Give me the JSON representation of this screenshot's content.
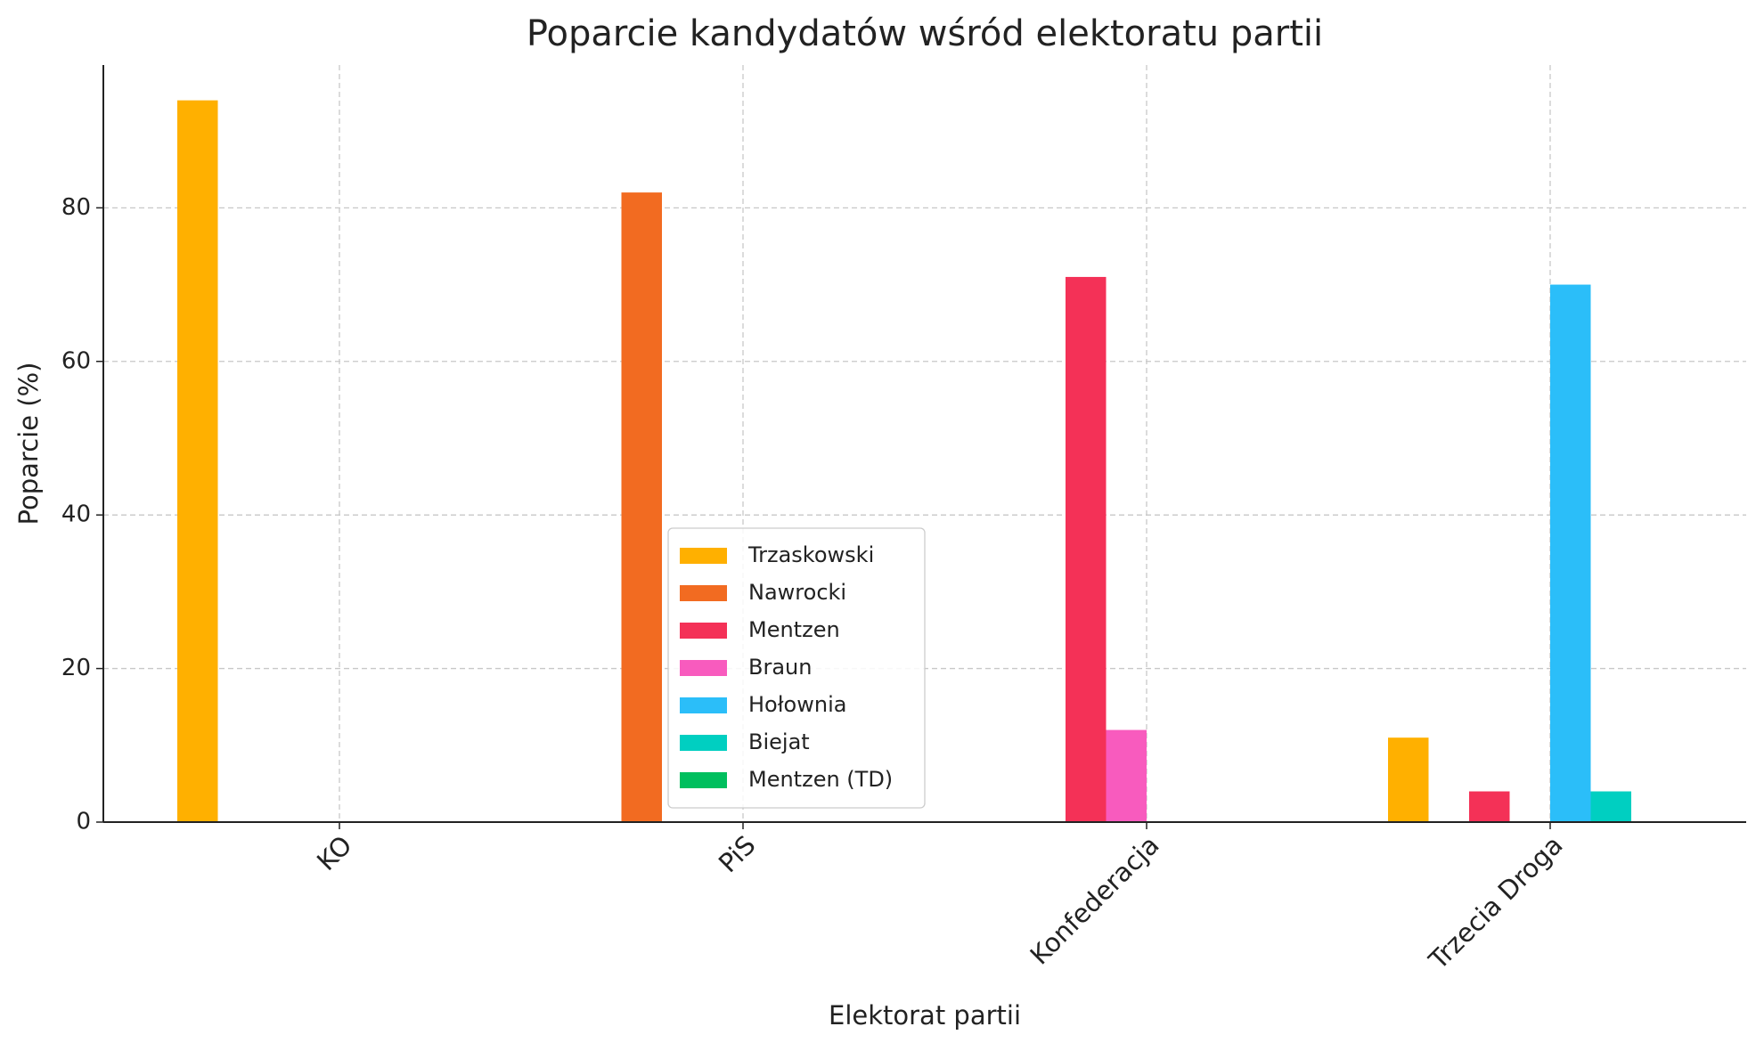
{
  "chart_data": {
    "type": "bar",
    "title": "Poparcie kandydatów wśród elektoratu partii",
    "x_label": "Elektorat partii",
    "y_label": "Poparcie (%)",
    "categories": [
      "KO",
      "PiS",
      "Konfederacja",
      "Trzecia Droga"
    ],
    "series": [
      {
        "name": "Trzaskowski",
        "color": "#ffb000",
        "values": [
          94,
          0,
          0,
          11
        ]
      },
      {
        "name": "Nawrocki",
        "color": "#f26b21",
        "values": [
          0,
          82,
          0,
          0
        ]
      },
      {
        "name": "Mentzen",
        "color": "#f43157",
        "values": [
          0,
          0,
          71,
          4
        ]
      },
      {
        "name": "Braun",
        "color": "#f85bbe",
        "values": [
          0,
          0,
          12,
          0
        ]
      },
      {
        "name": "Hołownia",
        "color": "#2bbef9",
        "values": [
          0,
          0,
          0,
          70
        ]
      },
      {
        "name": "Biejat",
        "color": "#00cfc1",
        "values": [
          0,
          0,
          0,
          4
        ]
      },
      {
        "name": "Mentzen (TD)",
        "color": "#00bf5e",
        "values": [
          0,
          0,
          0,
          0
        ]
      }
    ],
    "ylim": [
      0,
      98.6
    ],
    "yticks": [
      0,
      20,
      40,
      60,
      80
    ],
    "grid": true,
    "legend": "lower center"
  }
}
